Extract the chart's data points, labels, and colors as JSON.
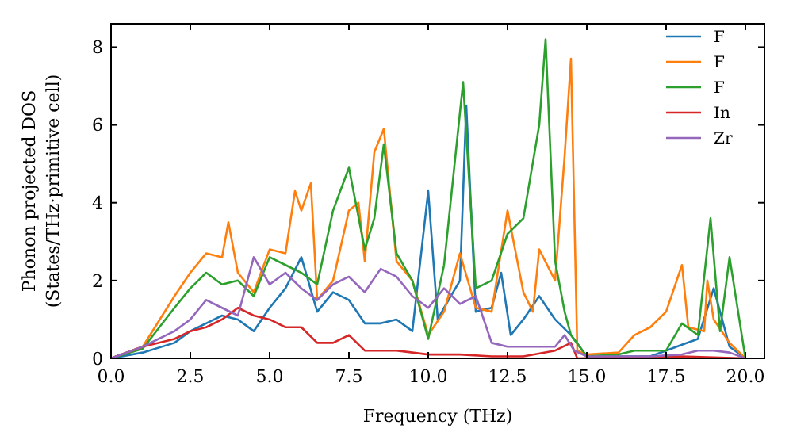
{
  "chart_data": {
    "type": "line",
    "xlabel": "Frequency (THz)",
    "ylabel": "Phonon projected DOS\n(States/THz·primitive cell)",
    "xlim": [
      0,
      20.6
    ],
    "ylim": [
      0,
      8.6
    ],
    "xticks": [
      {
        "value": 0,
        "label": "0.0"
      },
      {
        "value": 2.5,
        "label": "2.5"
      },
      {
        "value": 5,
        "label": "5.0"
      },
      {
        "value": 7.5,
        "label": "7.5"
      },
      {
        "value": 10,
        "label": "10.0"
      },
      {
        "value": 12.5,
        "label": "12.5"
      },
      {
        "value": 15,
        "label": "15.0"
      },
      {
        "value": 17.5,
        "label": "17.5"
      },
      {
        "value": 20,
        "label": "20.0"
      }
    ],
    "yticks": [
      0,
      2,
      4,
      6,
      8
    ],
    "legend": "top right",
    "grid": false,
    "series": [
      {
        "name": "F",
        "color": "#1f77b4",
        "x": [
          0,
          1,
          2,
          2.5,
          3,
          3.5,
          4,
          4.5,
          5,
          5.5,
          6,
          6.5,
          7,
          7.5,
          8,
          8.5,
          9,
          9.5,
          10,
          10.3,
          10.5,
          11,
          11.2,
          11.5,
          12,
          12.3,
          12.6,
          13,
          13.5,
          14,
          14.5,
          15,
          16,
          17,
          17.5,
          18,
          18.5,
          19,
          19.5,
          20
        ],
        "values": [
          0,
          0.15,
          0.4,
          0.7,
          0.9,
          1.1,
          1.0,
          0.7,
          1.3,
          1.8,
          2.6,
          1.2,
          1.7,
          1.5,
          0.9,
          0.9,
          1.0,
          0.7,
          4.3,
          1.0,
          1.3,
          2.0,
          6.5,
          1.2,
          1.3,
          2.2,
          0.6,
          1.0,
          1.6,
          1.0,
          0.6,
          0.05,
          0.05,
          0.05,
          0.2,
          0.35,
          0.5,
          1.8,
          0.3,
          0
        ]
      },
      {
        "name": "F",
        "color": "#ff7f0e",
        "x": [
          0,
          1,
          2,
          2.5,
          3,
          3.5,
          3.7,
          4,
          4.5,
          5,
          5.5,
          5.8,
          6,
          6.3,
          6.5,
          7,
          7.5,
          7.8,
          8,
          8.3,
          8.6,
          9,
          9.5,
          10,
          10.5,
          11,
          11.5,
          12,
          12.5,
          13,
          13.3,
          13.5,
          14,
          14.3,
          14.5,
          14.7,
          15,
          16,
          16.5,
          17,
          17.5,
          18,
          18.2,
          18.7,
          18.8,
          19,
          19.5,
          20
        ],
        "values": [
          0,
          0.3,
          1.6,
          2.2,
          2.7,
          2.6,
          3.5,
          2.2,
          1.7,
          2.8,
          2.7,
          4.3,
          3.8,
          4.5,
          1.5,
          2.0,
          3.8,
          4.0,
          2.5,
          5.3,
          5.9,
          2.5,
          2.0,
          0.6,
          1.2,
          2.7,
          1.3,
          1.2,
          3.8,
          1.7,
          1.2,
          2.8,
          2.0,
          5.2,
          7.7,
          0.2,
          0.1,
          0.15,
          0.6,
          0.8,
          1.2,
          2.4,
          0.8,
          0.7,
          2.0,
          1.0,
          0.4,
          0
        ]
      },
      {
        "name": "F",
        "color": "#2ca02c",
        "x": [
          0,
          1,
          2,
          2.5,
          3,
          3.5,
          4,
          4.5,
          5,
          5.5,
          6,
          6.5,
          7,
          7.5,
          8,
          8.3,
          8.6,
          9,
          9.5,
          10,
          10.5,
          11.1,
          11.5,
          12,
          12.5,
          13,
          13.5,
          13.7,
          14,
          14.3,
          14.5,
          15,
          16,
          16.5,
          17,
          17.5,
          18,
          18.5,
          18.9,
          19.2,
          19.5,
          20
        ],
        "values": [
          0,
          0.25,
          1.3,
          1.8,
          2.2,
          1.9,
          2.0,
          1.6,
          2.6,
          2.4,
          2.2,
          1.9,
          3.8,
          4.9,
          2.8,
          3.6,
          5.5,
          2.7,
          2.0,
          0.5,
          2.4,
          7.1,
          1.8,
          2.0,
          3.2,
          3.6,
          6.0,
          8.2,
          2.5,
          1.2,
          0.6,
          0.05,
          0.1,
          0.2,
          0.2,
          0.2,
          0.9,
          0.6,
          3.6,
          0.7,
          2.6,
          0
        ]
      },
      {
        "name": "In",
        "color": "#d62728",
        "x": [
          0,
          1,
          2,
          2.5,
          3,
          3.5,
          4,
          4.5,
          5,
          5.5,
          6,
          6.5,
          7,
          7.5,
          8,
          9,
          10,
          11,
          12,
          13,
          14,
          14.5,
          14.7,
          16,
          18,
          20
        ],
        "values": [
          0,
          0.3,
          0.5,
          0.7,
          0.8,
          1.0,
          1.3,
          1.1,
          1.0,
          0.8,
          0.8,
          0.4,
          0.4,
          0.6,
          0.2,
          0.2,
          0.1,
          0.1,
          0.05,
          0.05,
          0.2,
          0.4,
          0,
          0.02,
          0.05,
          0
        ]
      },
      {
        "name": "Zr",
        "color": "#9467bd",
        "x": [
          0,
          1,
          2,
          2.5,
          3,
          3.5,
          4,
          4.5,
          5,
          5.5,
          6,
          6.5,
          7,
          7.5,
          8,
          8.5,
          9,
          9.5,
          10,
          10.5,
          11,
          11.5,
          12,
          12.5,
          13,
          13.5,
          14,
          14.3,
          14.6,
          15,
          17,
          18,
          18.5,
          19,
          19.5,
          20
        ],
        "values": [
          0,
          0.3,
          0.7,
          1.0,
          1.5,
          1.3,
          1.1,
          2.6,
          1.9,
          2.2,
          1.8,
          1.5,
          1.9,
          2.1,
          1.7,
          2.3,
          2.1,
          1.6,
          1.3,
          1.8,
          1.4,
          1.6,
          0.4,
          0.3,
          0.3,
          0.3,
          0.3,
          0.6,
          0.2,
          0.05,
          0.05,
          0.1,
          0.2,
          0.2,
          0.15,
          0
        ]
      }
    ]
  }
}
